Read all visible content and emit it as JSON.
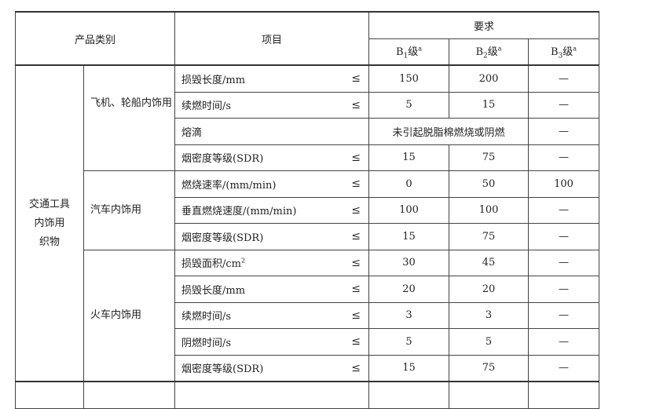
{
  "header": {
    "category": "产品类别",
    "item": "项目",
    "requirement": "要求",
    "grades": [
      {
        "base": "B",
        "sub": "1",
        "suffix": "级",
        "sup": "a"
      },
      {
        "base": "B",
        "sub": "2",
        "suffix": "级",
        "sup": "a"
      },
      {
        "base": "B",
        "sub": "3",
        "suffix": "级",
        "sup": "a"
      }
    ]
  },
  "category": "交通工具内饰用织物",
  "category_lines": [
    "交通工具",
    "内饰用",
    "织物"
  ],
  "le_symbol": "≤",
  "groups": [
    {
      "name": "飞机、轮船内饰用",
      "rows": [
        {
          "item": "损毁长度/mm",
          "le": true,
          "b1": "150",
          "b2": "200",
          "b3": "—"
        },
        {
          "item": "续燃时间/s",
          "le": true,
          "b1": "5",
          "b2": "15",
          "b3": "—"
        },
        {
          "item": "熔滴",
          "le": false,
          "merged": "未引起脱脂棉燃烧或阴燃",
          "b3": "—"
        },
        {
          "item": "烟密度等级(SDR)",
          "le": true,
          "b1": "15",
          "b2": "75",
          "b3": "—"
        }
      ]
    },
    {
      "name": "汽车内饰用",
      "rows": [
        {
          "item": "燃烧速率/(mm/min)",
          "le": true,
          "b1": "0",
          "b2": "50",
          "b3": "100"
        },
        {
          "item": "垂直燃烧速度/(mm/min)",
          "le": true,
          "b1": "100",
          "b2": "100",
          "b3": "—"
        },
        {
          "item": "烟密度等级(SDR)",
          "le": true,
          "b1": "15",
          "b2": "75",
          "b3": "—"
        }
      ]
    },
    {
      "name": "火车内饰用",
      "rows": [
        {
          "item": "损毁面积/cm",
          "item_sup": "2",
          "le": true,
          "b1": "30",
          "b2": "45",
          "b3": "—"
        },
        {
          "item": "损毁长度/mm",
          "le": true,
          "b1": "20",
          "b2": "20",
          "b3": "—"
        },
        {
          "item": "续燃时间/s",
          "le": true,
          "b1": "3",
          "b2": "3",
          "b3": "—"
        },
        {
          "item": "阴燃时间/s",
          "le": true,
          "b1": "5",
          "b2": "5",
          "b3": "—"
        },
        {
          "item": "烟密度等级(SDR)",
          "le": true,
          "b1": "15",
          "b2": "75",
          "b3": "—"
        }
      ]
    }
  ]
}
